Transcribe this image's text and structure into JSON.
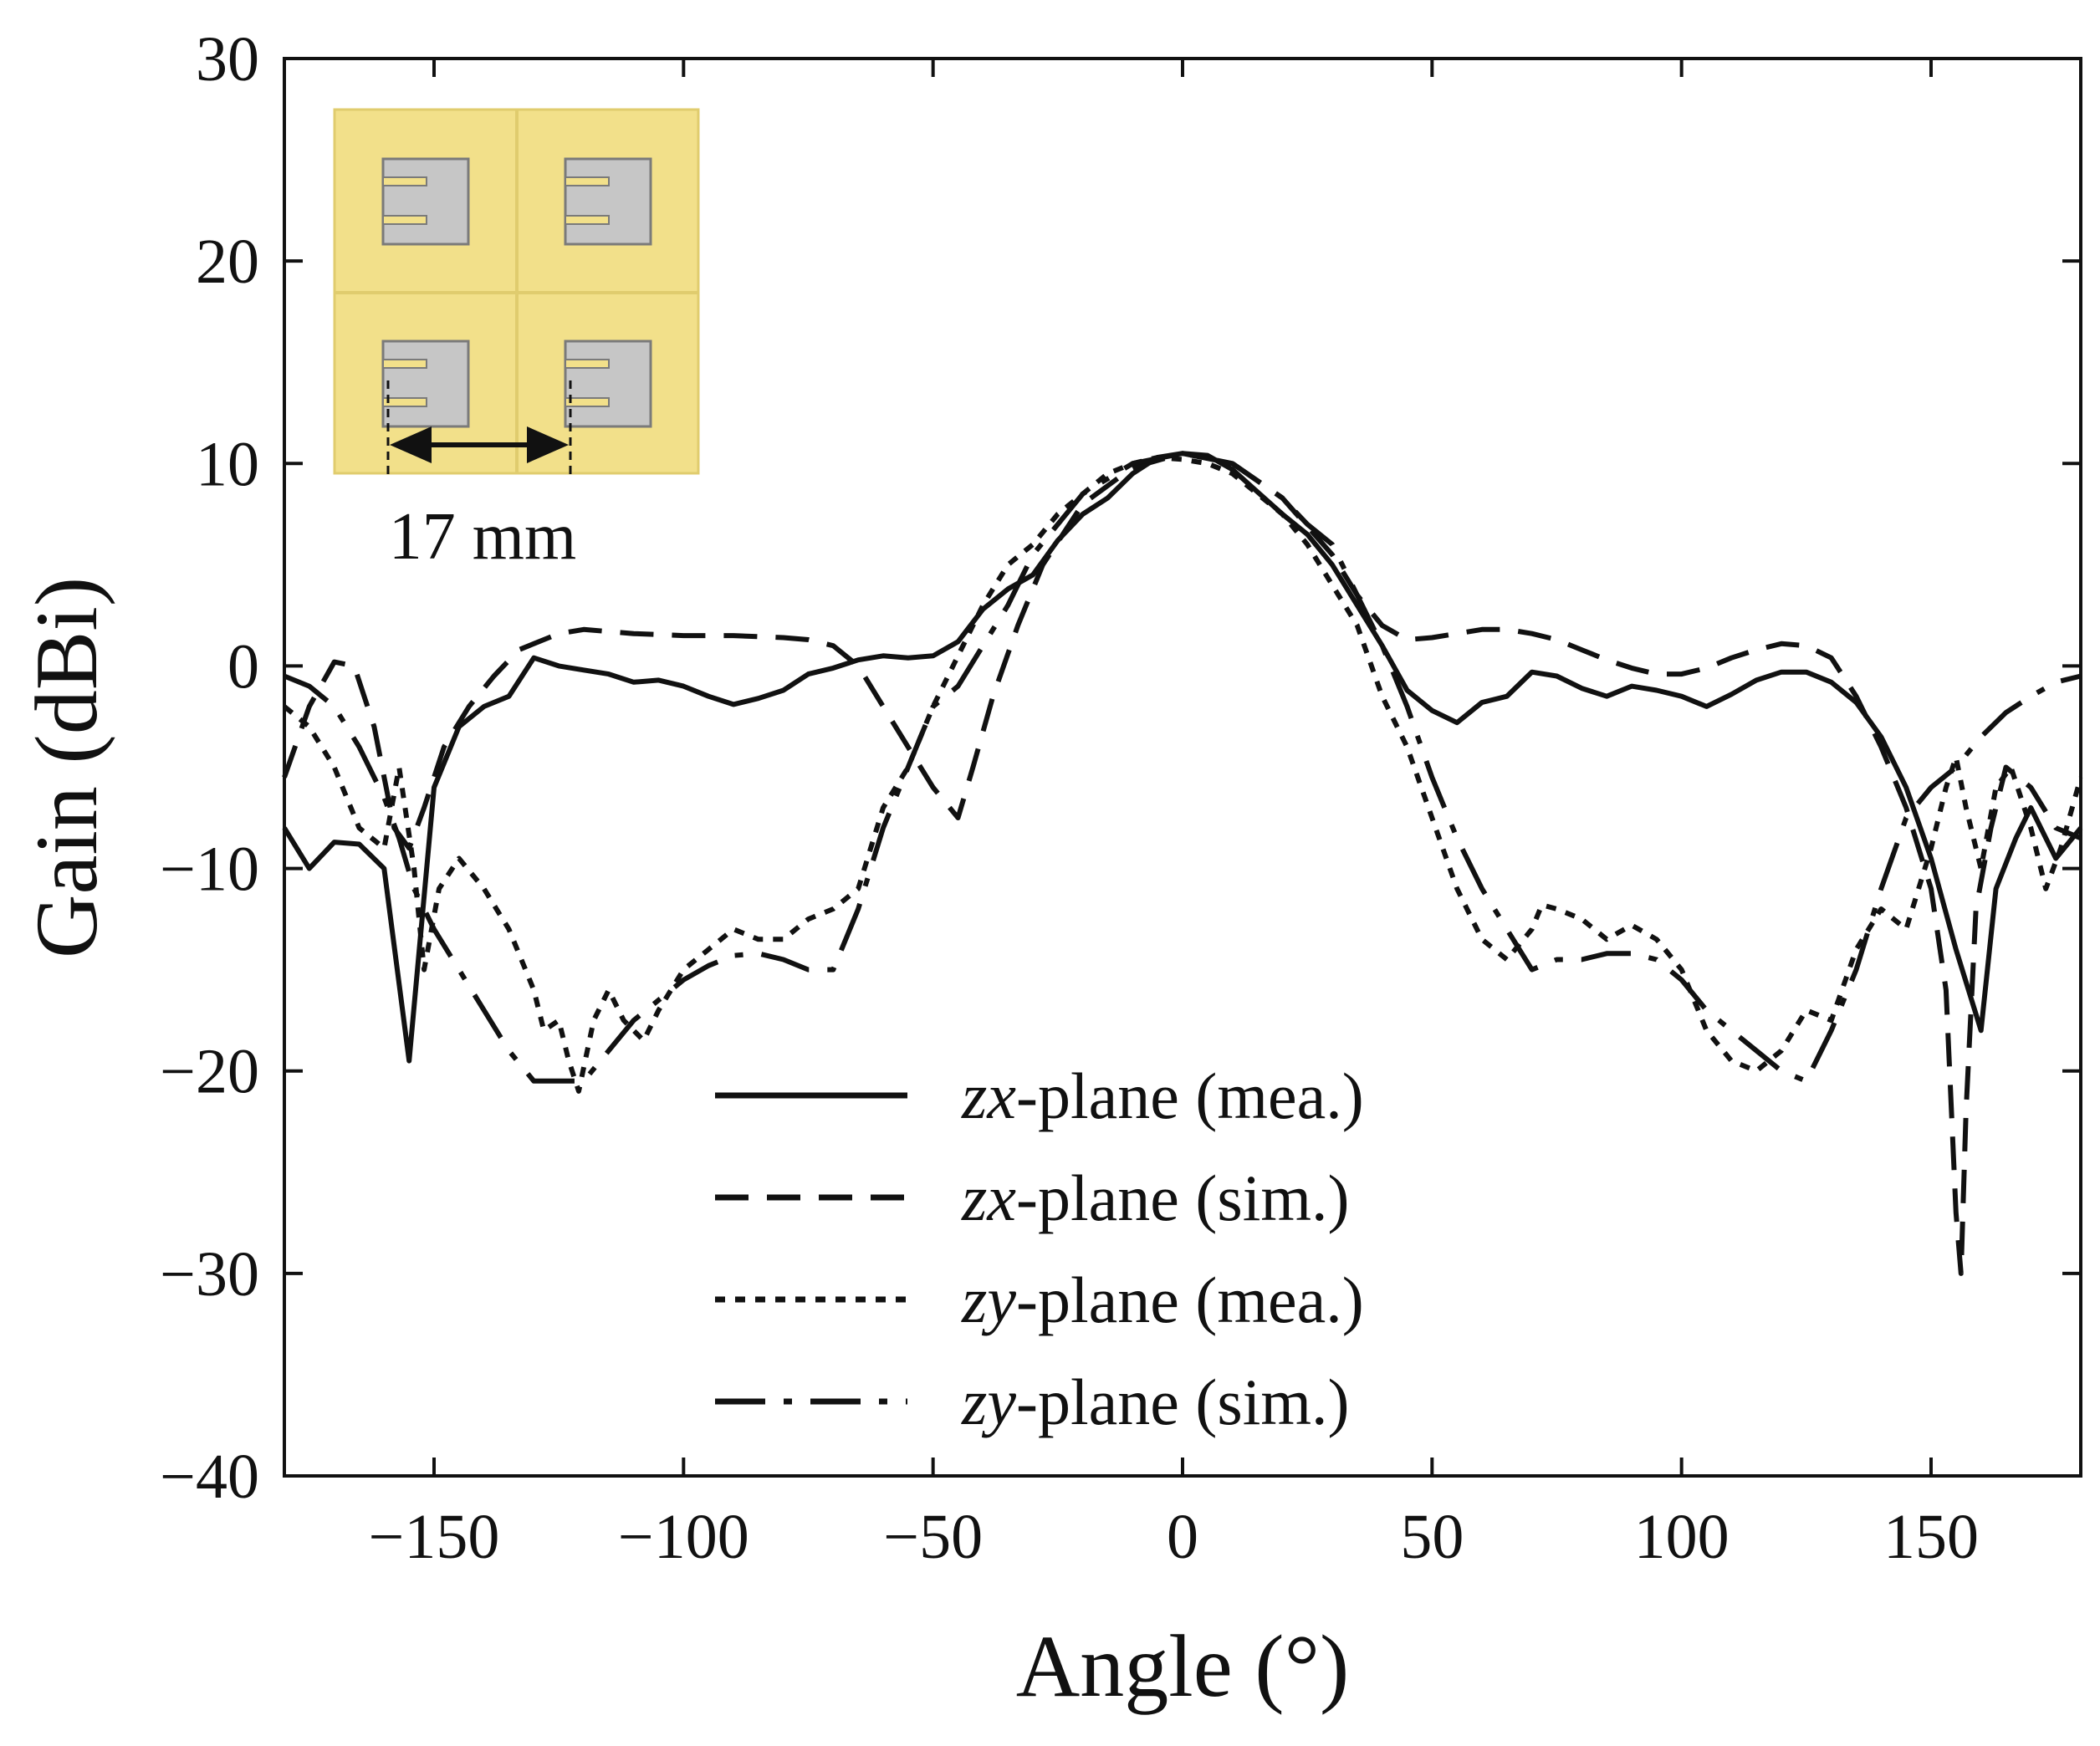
{
  "chart_data": {
    "type": "line",
    "title": "",
    "xlabel": "Angle (°)",
    "ylabel": "Gain (dBi)",
    "xlim": [
      -180,
      180
    ],
    "ylim": [
      -40,
      30
    ],
    "xticks": [
      -150,
      -100,
      -50,
      0,
      50,
      100,
      150
    ],
    "yticks": [
      -40,
      -30,
      -20,
      -10,
      0,
      10,
      20,
      30
    ],
    "xtick_labels": [
      "−150",
      "−100",
      "−50",
      "0",
      "50",
      "100",
      "150"
    ],
    "ytick_labels": [
      "−40",
      "−30",
      "−20",
      "−10",
      "0",
      "10",
      "20",
      "30"
    ],
    "grid": false,
    "legend_position": "bottom-center",
    "series": [
      {
        "name": "zx-plane (mea.)",
        "italic_prefix": "zx",
        "suffix": "-plane (mea.)",
        "dash": "solid",
        "points": [
          [
            -180,
            -8
          ],
          [
            -175,
            -10
          ],
          [
            -170,
            -8.7
          ],
          [
            -165,
            -8.8
          ],
          [
            -160,
            -10
          ],
          [
            -155,
            -19.5
          ],
          [
            -150,
            -6
          ],
          [
            -145,
            -3
          ],
          [
            -140,
            -2
          ],
          [
            -135,
            -1.5
          ],
          [
            -130,
            0.4
          ],
          [
            -125,
            0
          ],
          [
            -120,
            -0.2
          ],
          [
            -115,
            -0.4
          ],
          [
            -110,
            -0.8
          ],
          [
            -105,
            -0.7
          ],
          [
            -100,
            -1
          ],
          [
            -95,
            -1.5
          ],
          [
            -90,
            -1.9
          ],
          [
            -85,
            -1.6
          ],
          [
            -80,
            -1.2
          ],
          [
            -75,
            -0.4
          ],
          [
            -70,
            -0.1
          ],
          [
            -65,
            0.3
          ],
          [
            -60,
            0.5
          ],
          [
            -55,
            0.4
          ],
          [
            -50,
            0.5
          ],
          [
            -45,
            1.2
          ],
          [
            -40,
            2.8
          ],
          [
            -35,
            3.8
          ],
          [
            -30,
            4.5
          ],
          [
            -25,
            6.2
          ],
          [
            -20,
            7.5
          ],
          [
            -15,
            8.3
          ],
          [
            -10,
            9.5
          ],
          [
            -5,
            10.3
          ],
          [
            0,
            10.5
          ],
          [
            5,
            10.4
          ],
          [
            10,
            9.7
          ],
          [
            15,
            8.6
          ],
          [
            20,
            7.5
          ],
          [
            25,
            6.5
          ],
          [
            30,
            5
          ],
          [
            35,
            3
          ],
          [
            40,
            1
          ],
          [
            45,
            -1.2
          ],
          [
            50,
            -2.2
          ],
          [
            55,
            -2.8
          ],
          [
            60,
            -1.8
          ],
          [
            65,
            -1.5
          ],
          [
            70,
            -0.3
          ],
          [
            75,
            -0.5
          ],
          [
            80,
            -1.1
          ],
          [
            85,
            -1.5
          ],
          [
            90,
            -1
          ],
          [
            95,
            -1.2
          ],
          [
            100,
            -1.5
          ],
          [
            105,
            -2
          ],
          [
            110,
            -1.4
          ],
          [
            115,
            -0.7
          ],
          [
            120,
            -0.3
          ],
          [
            125,
            -0.3
          ],
          [
            130,
            -0.8
          ],
          [
            135,
            -1.8
          ],
          [
            140,
            -3.5
          ],
          [
            145,
            -6
          ],
          [
            150,
            -9.5
          ],
          [
            155,
            -14
          ],
          [
            160,
            -18
          ],
          [
            163,
            -11
          ],
          [
            167,
            -8.5
          ],
          [
            170,
            -7
          ],
          [
            175,
            -9.5
          ],
          [
            180,
            -8
          ]
        ]
      },
      {
        "name": "zx-plane (sim.)",
        "italic_prefix": "zx",
        "suffix": "-plane (sim.)",
        "dash": "dashed",
        "points": [
          [
            -180,
            -5.5
          ],
          [
            -175,
            -2
          ],
          [
            -170,
            0.2
          ],
          [
            -166,
            0
          ],
          [
            -162,
            -3
          ],
          [
            -158,
            -8
          ],
          [
            -155,
            -9
          ],
          [
            -152,
            -7
          ],
          [
            -148,
            -4
          ],
          [
            -143,
            -2
          ],
          [
            -138,
            -0.5
          ],
          [
            -133,
            0.8
          ],
          [
            -125,
            1.6
          ],
          [
            -120,
            1.8
          ],
          [
            -110,
            1.6
          ],
          [
            -100,
            1.5
          ],
          [
            -90,
            1.5
          ],
          [
            -80,
            1.4
          ],
          [
            -75,
            1.3
          ],
          [
            -70,
            1
          ],
          [
            -65,
            0
          ],
          [
            -60,
            -2
          ],
          [
            -55,
            -4
          ],
          [
            -50,
            -6
          ],
          [
            -45,
            -7.5
          ],
          [
            -42,
            -5
          ],
          [
            -38,
            -1.5
          ],
          [
            -33,
            2
          ],
          [
            -28,
            5
          ],
          [
            -20,
            8
          ],
          [
            -10,
            9.8
          ],
          [
            0,
            10.5
          ],
          [
            10,
            10
          ],
          [
            20,
            8.3
          ],
          [
            30,
            5.5
          ],
          [
            35,
            3.5
          ],
          [
            40,
            2
          ],
          [
            45,
            1.3
          ],
          [
            50,
            1.4
          ],
          [
            55,
            1.6
          ],
          [
            60,
            1.8
          ],
          [
            65,
            1.8
          ],
          [
            70,
            1.6
          ],
          [
            75,
            1.3
          ],
          [
            80,
            0.8
          ],
          [
            85,
            0.3
          ],
          [
            90,
            -0.1
          ],
          [
            95,
            -0.4
          ],
          [
            100,
            -0.4
          ],
          [
            105,
            -0.1
          ],
          [
            110,
            0.4
          ],
          [
            115,
            0.8
          ],
          [
            120,
            1.1
          ],
          [
            125,
            1
          ],
          [
            130,
            0.4
          ],
          [
            135,
            -1.5
          ],
          [
            140,
            -4
          ],
          [
            145,
            -7
          ],
          [
            150,
            -11
          ],
          [
            153,
            -16
          ],
          [
            155,
            -27
          ],
          [
            156,
            -30
          ],
          [
            157,
            -22
          ],
          [
            159,
            -12
          ],
          [
            162,
            -8
          ],
          [
            165,
            -5
          ],
          [
            170,
            -6
          ],
          [
            175,
            -8
          ],
          [
            180,
            -8.5
          ]
        ]
      },
      {
        "name": "zy-plane (mea.)",
        "italic_prefix": "zy",
        "suffix": "-plane (mea.)",
        "dash": "dotted",
        "points": [
          [
            -180,
            -2
          ],
          [
            -175,
            -3
          ],
          [
            -170,
            -5
          ],
          [
            -165,
            -8
          ],
          [
            -160,
            -9
          ],
          [
            -157,
            -5
          ],
          [
            -154,
            -10
          ],
          [
            -152,
            -15
          ],
          [
            -149,
            -11
          ],
          [
            -145,
            -9.5
          ],
          [
            -140,
            -11
          ],
          [
            -135,
            -13
          ],
          [
            -130,
            -16
          ],
          [
            -128,
            -18
          ],
          [
            -125,
            -17.5
          ],
          [
            -123,
            -19.5
          ],
          [
            -121,
            -21
          ],
          [
            -118,
            -17.5
          ],
          [
            -115,
            -16
          ],
          [
            -112,
            -17.5
          ],
          [
            -108,
            -18.5
          ],
          [
            -105,
            -17
          ],
          [
            -100,
            -15
          ],
          [
            -95,
            -14
          ],
          [
            -90,
            -13
          ],
          [
            -85,
            -13.5
          ],
          [
            -80,
            -13.5
          ],
          [
            -75,
            -12.5
          ],
          [
            -70,
            -12
          ],
          [
            -65,
            -11
          ],
          [
            -60,
            -7
          ],
          [
            -55,
            -5
          ],
          [
            -50,
            -2
          ],
          [
            -45,
            0.5
          ],
          [
            -40,
            3
          ],
          [
            -35,
            5
          ],
          [
            -30,
            6
          ],
          [
            -25,
            7.5
          ],
          [
            -20,
            8.5
          ],
          [
            -15,
            9.5
          ],
          [
            -10,
            10
          ],
          [
            -5,
            10.3
          ],
          [
            0,
            10.2
          ],
          [
            5,
            10
          ],
          [
            10,
            9.5
          ],
          [
            15,
            8.5
          ],
          [
            20,
            7.5
          ],
          [
            25,
            6
          ],
          [
            30,
            4
          ],
          [
            35,
            2
          ],
          [
            40,
            -1.5
          ],
          [
            45,
            -4
          ],
          [
            50,
            -7.5
          ],
          [
            55,
            -11
          ],
          [
            60,
            -13.5
          ],
          [
            65,
            -14.5
          ],
          [
            70,
            -13
          ],
          [
            72,
            -11.8
          ],
          [
            75,
            -12
          ],
          [
            80,
            -12.5
          ],
          [
            85,
            -13.5
          ],
          [
            90,
            -12.8
          ],
          [
            95,
            -13.5
          ],
          [
            100,
            -15
          ],
          [
            105,
            -18
          ],
          [
            110,
            -19.5
          ],
          [
            115,
            -20
          ],
          [
            120,
            -19
          ],
          [
            125,
            -17
          ],
          [
            130,
            -17.5
          ],
          [
            135,
            -14
          ],
          [
            140,
            -12
          ],
          [
            145,
            -13
          ],
          [
            150,
            -9
          ],
          [
            153,
            -6
          ],
          [
            155,
            -4.5
          ],
          [
            157,
            -7
          ],
          [
            160,
            -10
          ],
          [
            163,
            -6
          ],
          [
            166,
            -5
          ],
          [
            170,
            -8
          ],
          [
            173,
            -11
          ],
          [
            176,
            -9
          ],
          [
            180,
            -5.5
          ]
        ]
      },
      {
        "name": "zy-plane (sim.)",
        "italic_prefix": "zy",
        "suffix": "-plane (sim.)",
        "dash": "dashdot",
        "points": [
          [
            -180,
            -0.5
          ],
          [
            -175,
            -1
          ],
          [
            -170,
            -2
          ],
          [
            -165,
            -4
          ],
          [
            -160,
            -6.5
          ],
          [
            -157,
            -8.5
          ],
          [
            -154,
            -11
          ],
          [
            -150,
            -13
          ],
          [
            -145,
            -15
          ],
          [
            -140,
            -17
          ],
          [
            -135,
            -19
          ],
          [
            -130,
            -20.5
          ],
          [
            -125,
            -20.5
          ],
          [
            -120,
            -20.5
          ],
          [
            -115,
            -19
          ],
          [
            -110,
            -17.5
          ],
          [
            -105,
            -16.5
          ],
          [
            -100,
            -15.5
          ],
          [
            -95,
            -14.8
          ],
          [
            -90,
            -14.3
          ],
          [
            -85,
            -14.2
          ],
          [
            -80,
            -14.5
          ],
          [
            -75,
            -15
          ],
          [
            -70,
            -15
          ],
          [
            -65,
            -12
          ],
          [
            -60,
            -8
          ],
          [
            -55,
            -5
          ],
          [
            -50,
            -2
          ],
          [
            -45,
            -1
          ],
          [
            -40,
            1
          ],
          [
            -35,
            3
          ],
          [
            -30,
            5.5
          ],
          [
            -20,
            8.5
          ],
          [
            -10,
            10
          ],
          [
            0,
            10.5
          ],
          [
            10,
            10
          ],
          [
            20,
            8.3
          ],
          [
            25,
            7
          ],
          [
            30,
            6
          ],
          [
            35,
            3.5
          ],
          [
            40,
            1
          ],
          [
            45,
            -2
          ],
          [
            50,
            -5.5
          ],
          [
            55,
            -8.5
          ],
          [
            60,
            -11
          ],
          [
            65,
            -13
          ],
          [
            70,
            -15
          ],
          [
            75,
            -14.5
          ],
          [
            80,
            -14.5
          ],
          [
            85,
            -14.2
          ],
          [
            90,
            -14.2
          ],
          [
            95,
            -14.5
          ],
          [
            100,
            -15.5
          ],
          [
            105,
            -17
          ],
          [
            110,
            -18
          ],
          [
            115,
            -19
          ],
          [
            120,
            -20
          ],
          [
            125,
            -20.5
          ],
          [
            130,
            -18
          ],
          [
            135,
            -15
          ],
          [
            140,
            -11
          ],
          [
            145,
            -7.5
          ],
          [
            150,
            -6
          ],
          [
            155,
            -5
          ],
          [
            160,
            -3.5
          ],
          [
            165,
            -2.3
          ],
          [
            170,
            -1.5
          ],
          [
            175,
            -0.8
          ],
          [
            180,
            -0.5
          ]
        ]
      }
    ],
    "annotations": [
      {
        "text": "17 mm",
        "type": "inset-dimension"
      }
    ]
  },
  "colors": {
    "line": "#111111",
    "inset_substrate": "#f2e08a",
    "inset_substrate_edge": "#e0cc6e",
    "inset_patch": "#c6c6c6",
    "inset_patch_edge": "#7a7a7a",
    "background": "#ffffff"
  }
}
